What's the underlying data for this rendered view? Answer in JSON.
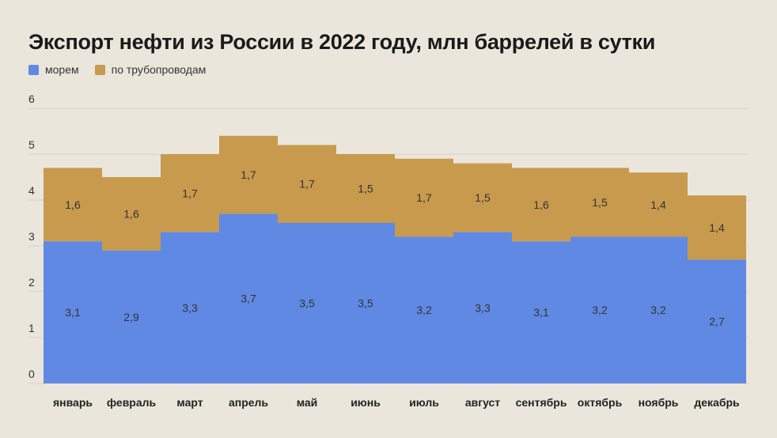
{
  "title": "Экспорт нефти из России в 2022 году, млн баррелей в сутки",
  "colors": {
    "sea": "#6089e3",
    "pipe": "#c79a4d",
    "grid": "#d6d1c6",
    "background": "#ebe6dc"
  },
  "chart_data": {
    "type": "bar",
    "stacked": true,
    "categories": [
      "январь",
      "февраль",
      "март",
      "апрель",
      "май",
      "июнь",
      "июль",
      "август",
      "сентябрь",
      "октябрь",
      "ноябрь",
      "декабрь"
    ],
    "series": [
      {
        "name": "морем",
        "values": [
          3.1,
          2.9,
          3.3,
          3.7,
          3.5,
          3.5,
          3.2,
          3.3,
          3.1,
          3.2,
          3.2,
          2.7
        ]
      },
      {
        "name": "по трубопроводам",
        "values": [
          1.6,
          1.6,
          1.7,
          1.7,
          1.7,
          1.5,
          1.7,
          1.5,
          1.6,
          1.5,
          1.4,
          1.4
        ]
      }
    ],
    "value_labels": [
      [
        "3,1",
        "2,9",
        "3,3",
        "3,7",
        "3,5",
        "3,5",
        "3,2",
        "3,3",
        "3,1",
        "3,2",
        "3,2",
        "2,7"
      ],
      [
        "1,6",
        "1,6",
        "1,7",
        "1,7",
        "1,7",
        "1,5",
        "1,7",
        "1,5",
        "1,6",
        "1,5",
        "1,4",
        "1,4"
      ]
    ],
    "y_ticks": [
      "0",
      "1",
      "2",
      "3",
      "4",
      "5",
      "6"
    ],
    "ylim": [
      0,
      6
    ],
    "grid": true,
    "legend_position": "top-left"
  }
}
